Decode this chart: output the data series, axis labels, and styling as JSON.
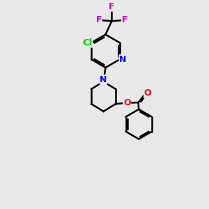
{
  "background_color": "#e8e8e8",
  "bond_color": "#000000",
  "atom_colors": {
    "N": "#0000ff",
    "O": "#ff0000",
    "Cl": "#00cc00",
    "F": "#cc00cc",
    "C": "#000000"
  },
  "figsize": [
    3.0,
    3.0
  ],
  "dpi": 100
}
